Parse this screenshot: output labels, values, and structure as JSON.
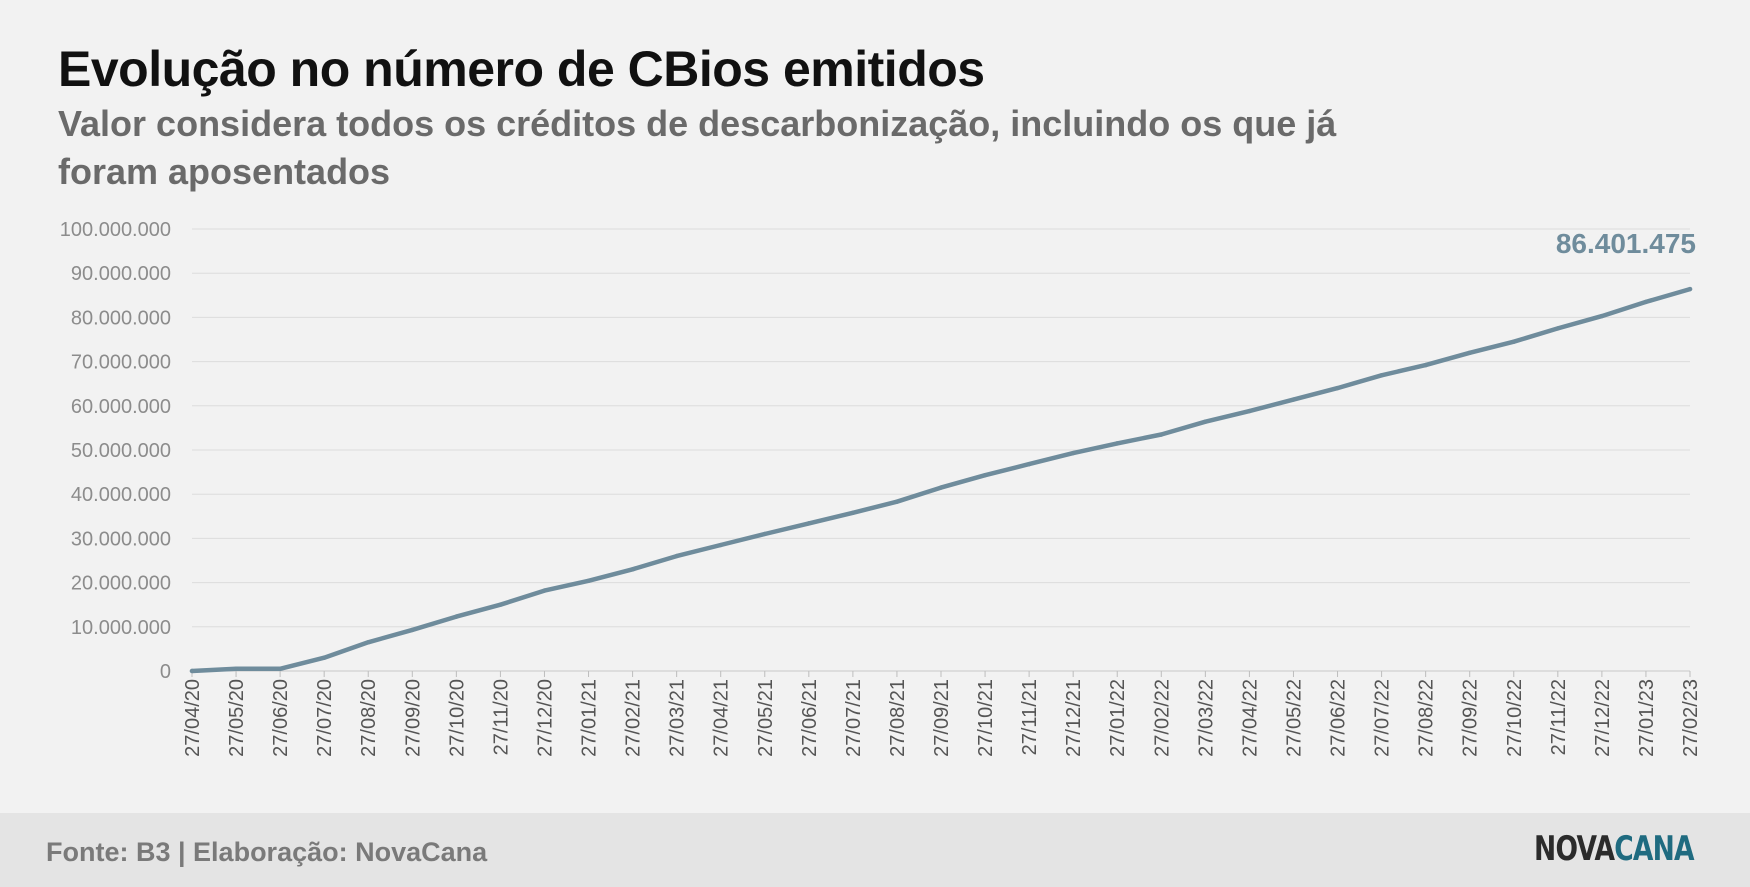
{
  "header": {
    "title": "Evolução no número de CBios emitidos",
    "subtitle": "Valor considera todos os créditos de descarbonização, incluindo os que já foram aposentados"
  },
  "footer": {
    "source": "Fonte: B3 | Elaboração: NovaCana",
    "logo_part1": "NOVA",
    "logo_part2": "CANA"
  },
  "colors": {
    "line": "#6f8c9c",
    "label": "#6f8c9c",
    "grid": "#dcdcdc",
    "tick_text": "#8c8c8c",
    "logo_dark": "#2b2b2b",
    "logo_accent": "#1f6b80"
  },
  "chart_data": {
    "type": "line",
    "title": "Evolução no número de CBios emitidos",
    "subtitle": "Valor considera todos os créditos de descarbonização, incluindo os que já foram aposentados",
    "xlabel": "",
    "ylabel": "",
    "ylim": [
      0,
      100000000
    ],
    "yticks": [
      0,
      10000000,
      20000000,
      30000000,
      40000000,
      50000000,
      60000000,
      70000000,
      80000000,
      90000000,
      100000000
    ],
    "ytick_labels": [
      "0",
      "10.000.000",
      "20.000.000",
      "30.000.000",
      "40.000.000",
      "50.000.000",
      "60.000.000",
      "70.000.000",
      "80.000.000",
      "90.000.000",
      "100.000.000"
    ],
    "grid": true,
    "legend": "none",
    "x": [
      "27/04/20",
      "27/05/20",
      "27/06/20",
      "27/07/20",
      "27/08/20",
      "27/09/20",
      "27/10/20",
      "27/11/20",
      "27/12/20",
      "27/01/21",
      "27/02/21",
      "27/03/21",
      "27/04/21",
      "27/05/21",
      "27/06/21",
      "27/07/21",
      "27/08/21",
      "27/09/21",
      "27/10/21",
      "27/11/21",
      "27/12/21",
      "27/01/22",
      "27/02/22",
      "27/03/22",
      "27/04/22",
      "27/05/22",
      "27/06/22",
      "27/07/22",
      "27/08/22",
      "27/09/22",
      "27/10/22",
      "27/11/22",
      "27/12/22",
      "27/01/23",
      "27/02/23"
    ],
    "series": [
      {
        "values": [
          0,
          500000,
          500000,
          3000000,
          6500000,
          9300000,
          12300000,
          15000000,
          18200000,
          20400000,
          23000000,
          26000000,
          28500000,
          31000000,
          33400000,
          35800000,
          38300000,
          41500000,
          44300000,
          46800000,
          49300000,
          51500000,
          53500000,
          56400000,
          58800000,
          61400000,
          64000000,
          66900000,
          69200000,
          72000000,
          74500000,
          77500000,
          80300000,
          83500000,
          86401475
        ]
      }
    ],
    "annotations": [
      {
        "text": "86.401.475",
        "x": "27/02/23",
        "y": 86401475
      }
    ]
  }
}
